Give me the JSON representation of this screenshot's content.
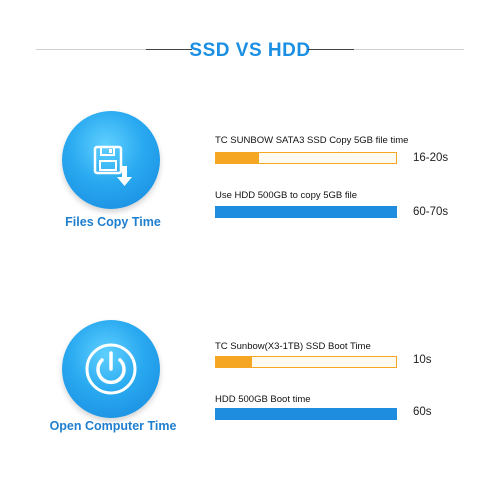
{
  "header": {
    "title": "SSD VS HDD"
  },
  "sections": [
    {
      "label": "Files Copy Time",
      "icon": "file-copy-icon",
      "bars": [
        {
          "label": "TC SUNBOW SATA3 SSD Copy 5GB file time",
          "value": "16-20s",
          "color": "#f5a623",
          "fill": 0.24
        },
        {
          "label": "Use HDD 500GB to copy 5GB file",
          "value": "60-70s",
          "color": "#1e8de0",
          "fill": 1.0
        }
      ]
    },
    {
      "label": "Open Computer Time",
      "icon": "power-icon",
      "bars": [
        {
          "label": "TC Sunbow(X3-1TB) SSD  Boot Time",
          "value": "10s",
          "color": "#f5a623",
          "fill": 0.2
        },
        {
          "label": "HDD 500GB Boot time",
          "value": "60s",
          "color": "#1e8de0",
          "fill": 1.0
        }
      ]
    }
  ]
}
